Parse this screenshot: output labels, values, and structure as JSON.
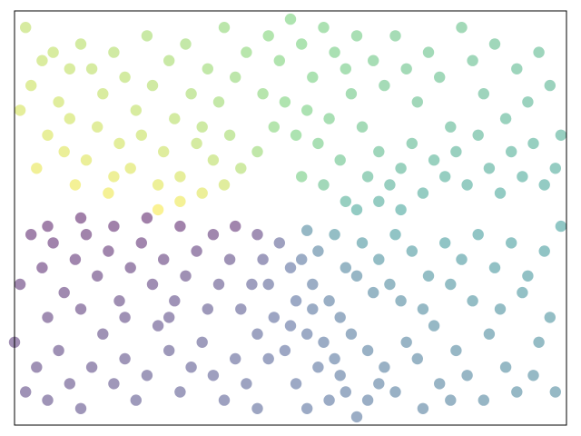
{
  "chart_data": {
    "type": "scatter",
    "title": "",
    "xlabel": "",
    "ylabel": "",
    "xticks": [],
    "yticks": [],
    "xlim": [
      0,
      1
    ],
    "ylim": [
      0,
      1
    ],
    "grid": false,
    "legend": "none",
    "marker": "circle",
    "alpha": 0.5,
    "colormap": "viridis",
    "colormap_stops": [
      "#440154",
      "#3b528b",
      "#21918c",
      "#5ec962",
      "#fde725"
    ],
    "description_of_color": "color encodes angle of each point around center (0.5, 0.5)",
    "points": [
      [
        0.02,
        0.96
      ],
      [
        0.05,
        0.88
      ],
      [
        0.03,
        0.82
      ],
      [
        0.08,
        0.78
      ],
      [
        0.06,
        0.7
      ],
      [
        0.04,
        0.62
      ],
      [
        0.1,
        0.74
      ],
      [
        0.12,
        0.92
      ],
      [
        0.14,
        0.86
      ],
      [
        0.09,
        0.66
      ],
      [
        0.11,
        0.58
      ],
      [
        0.16,
        0.8
      ],
      [
        0.18,
        0.9
      ],
      [
        0.2,
        0.84
      ],
      [
        0.15,
        0.72
      ],
      [
        0.13,
        0.64
      ],
      [
        0.17,
        0.56
      ],
      [
        0.19,
        0.68
      ],
      [
        0.22,
        0.76
      ],
      [
        0.24,
        0.94
      ],
      [
        0.21,
        0.62
      ],
      [
        0.25,
        0.82
      ],
      [
        0.23,
        0.7
      ],
      [
        0.26,
        0.58
      ],
      [
        0.28,
        0.88
      ],
      [
        0.27,
        0.66
      ],
      [
        0.29,
        0.74
      ],
      [
        0.3,
        0.6
      ],
      [
        0.32,
        0.8
      ],
      [
        0.31,
        0.92
      ],
      [
        0.33,
        0.68
      ],
      [
        0.35,
        0.86
      ],
      [
        0.34,
        0.72
      ],
      [
        0.36,
        0.64
      ],
      [
        0.37,
        0.78
      ],
      [
        0.38,
        0.96
      ],
      [
        0.39,
        0.7
      ],
      [
        0.4,
        0.84
      ],
      [
        0.41,
        0.62
      ],
      [
        0.42,
        0.9
      ],
      [
        0.07,
        0.9
      ],
      [
        0.01,
        0.76
      ],
      [
        0.1,
        0.86
      ],
      [
        0.18,
        0.6
      ],
      [
        0.26,
        0.52
      ],
      [
        0.3,
        0.54
      ],
      [
        0.34,
        0.56
      ],
      [
        0.38,
        0.58
      ],
      [
        0.44,
        0.66
      ],
      [
        0.45,
        0.8
      ],
      [
        0.46,
        0.94
      ],
      [
        0.48,
        0.88
      ],
      [
        0.5,
        0.98
      ],
      [
        0.52,
        0.92
      ],
      [
        0.54,
        0.84
      ],
      [
        0.56,
        0.96
      ],
      [
        0.58,
        0.9
      ],
      [
        0.6,
        0.86
      ],
      [
        0.62,
        0.94
      ],
      [
        0.47,
        0.72
      ],
      [
        0.49,
        0.78
      ],
      [
        0.51,
        0.7
      ],
      [
        0.53,
        0.76
      ],
      [
        0.55,
        0.68
      ],
      [
        0.57,
        0.74
      ],
      [
        0.59,
        0.64
      ],
      [
        0.61,
        0.8
      ],
      [
        0.63,
        0.72
      ],
      [
        0.65,
        0.88
      ],
      [
        0.67,
        0.82
      ],
      [
        0.69,
        0.94
      ],
      [
        0.71,
        0.86
      ],
      [
        0.73,
        0.78
      ],
      [
        0.75,
        0.9
      ],
      [
        0.77,
        0.84
      ],
      [
        0.79,
        0.72
      ],
      [
        0.81,
        0.96
      ],
      [
        0.83,
        0.88
      ],
      [
        0.85,
        0.8
      ],
      [
        0.87,
        0.92
      ],
      [
        0.89,
        0.74
      ],
      [
        0.91,
        0.86
      ],
      [
        0.93,
        0.78
      ],
      [
        0.95,
        0.9
      ],
      [
        0.97,
        0.82
      ],
      [
        0.99,
        0.7
      ],
      [
        0.64,
        0.6
      ],
      [
        0.66,
        0.66
      ],
      [
        0.68,
        0.58
      ],
      [
        0.7,
        0.62
      ],
      [
        0.72,
        0.68
      ],
      [
        0.74,
        0.56
      ],
      [
        0.76,
        0.64
      ],
      [
        0.78,
        0.6
      ],
      [
        0.8,
        0.66
      ],
      [
        0.82,
        0.58
      ],
      [
        0.84,
        0.7
      ],
      [
        0.86,
        0.62
      ],
      [
        0.88,
        0.56
      ],
      [
        0.9,
        0.66
      ],
      [
        0.92,
        0.6
      ],
      [
        0.94,
        0.68
      ],
      [
        0.96,
        0.58
      ],
      [
        0.98,
        0.62
      ],
      [
        0.6,
        0.54
      ],
      [
        0.56,
        0.58
      ],
      [
        0.52,
        0.6
      ],
      [
        0.62,
        0.52
      ],
      [
        0.66,
        0.54
      ],
      [
        0.7,
        0.52
      ],
      [
        0.53,
        0.47
      ],
      [
        0.55,
        0.42
      ],
      [
        0.58,
        0.46
      ],
      [
        0.6,
        0.38
      ],
      [
        0.63,
        0.44
      ],
      [
        0.66,
        0.4
      ],
      [
        0.69,
        0.46
      ],
      [
        0.72,
        0.42
      ],
      [
        0.75,
        0.36
      ],
      [
        0.78,
        0.44
      ],
      [
        0.81,
        0.4
      ],
      [
        0.84,
        0.46
      ],
      [
        0.87,
        0.38
      ],
      [
        0.9,
        0.44
      ],
      [
        0.93,
        0.36
      ],
      [
        0.96,
        0.42
      ],
      [
        0.99,
        0.48
      ],
      [
        0.65,
        0.32
      ],
      [
        0.7,
        0.3
      ],
      [
        0.74,
        0.28
      ],
      [
        0.79,
        0.34
      ],
      [
        0.83,
        0.3
      ],
      [
        0.88,
        0.28
      ],
      [
        0.92,
        0.32
      ],
      [
        0.97,
        0.26
      ],
      [
        0.62,
        0.36
      ],
      [
        0.68,
        0.34
      ],
      [
        0.76,
        0.24
      ],
      [
        0.86,
        0.22
      ],
      [
        0.95,
        0.2
      ],
      [
        0.52,
        0.4
      ],
      [
        0.54,
        0.34
      ],
      [
        0.57,
        0.3
      ],
      [
        0.59,
        0.26
      ],
      [
        0.61,
        0.22
      ],
      [
        0.64,
        0.18
      ],
      [
        0.67,
        0.14
      ],
      [
        0.71,
        0.2
      ],
      [
        0.73,
        0.16
      ],
      [
        0.77,
        0.1
      ],
      [
        0.8,
        0.18
      ],
      [
        0.82,
        0.12
      ],
      [
        0.85,
        0.06
      ],
      [
        0.89,
        0.14
      ],
      [
        0.91,
        0.08
      ],
      [
        0.94,
        0.12
      ],
      [
        0.98,
        0.08
      ],
      [
        0.69,
        0.08
      ],
      [
        0.74,
        0.04
      ],
      [
        0.79,
        0.06
      ],
      [
        0.48,
        0.44
      ],
      [
        0.5,
        0.38
      ],
      [
        0.46,
        0.34
      ],
      [
        0.51,
        0.3
      ],
      [
        0.47,
        0.26
      ],
      [
        0.53,
        0.22
      ],
      [
        0.49,
        0.18
      ],
      [
        0.55,
        0.14
      ],
      [
        0.51,
        0.1
      ],
      [
        0.57,
        0.06
      ],
      [
        0.53,
        0.04
      ],
      [
        0.59,
        0.12
      ],
      [
        0.56,
        0.2
      ],
      [
        0.6,
        0.08
      ],
      [
        0.62,
        0.02
      ],
      [
        0.66,
        0.1
      ],
      [
        0.64,
        0.06
      ],
      [
        0.58,
        0.16
      ],
      [
        0.54,
        0.28
      ],
      [
        0.5,
        0.24
      ],
      [
        0.45,
        0.4
      ],
      [
        0.43,
        0.34
      ],
      [
        0.41,
        0.28
      ],
      [
        0.44,
        0.22
      ],
      [
        0.4,
        0.16
      ],
      [
        0.42,
        0.1
      ],
      [
        0.38,
        0.06
      ],
      [
        0.36,
        0.12
      ],
      [
        0.34,
        0.2
      ],
      [
        0.32,
        0.14
      ],
      [
        0.3,
        0.08
      ],
      [
        0.28,
        0.18
      ],
      [
        0.26,
        0.24
      ],
      [
        0.24,
        0.12
      ],
      [
        0.22,
        0.06
      ],
      [
        0.2,
        0.16
      ],
      [
        0.18,
        0.1
      ],
      [
        0.16,
        0.22
      ],
      [
        0.14,
        0.14
      ],
      [
        0.12,
        0.04
      ],
      [
        0.1,
        0.1
      ],
      [
        0.08,
        0.18
      ],
      [
        0.06,
        0.06
      ],
      [
        0.04,
        0.14
      ],
      [
        0.02,
        0.08
      ],
      [
        0.0,
        0.2
      ],
      [
        0.39,
        0.4
      ],
      [
        0.37,
        0.34
      ],
      [
        0.35,
        0.28
      ],
      [
        0.33,
        0.42
      ],
      [
        0.31,
        0.36
      ],
      [
        0.29,
        0.3
      ],
      [
        0.27,
        0.4
      ],
      [
        0.25,
        0.34
      ],
      [
        0.23,
        0.44
      ],
      [
        0.21,
        0.38
      ],
      [
        0.19,
        0.3
      ],
      [
        0.17,
        0.42
      ],
      [
        0.15,
        0.36
      ],
      [
        0.13,
        0.46
      ],
      [
        0.11,
        0.4
      ],
      [
        0.09,
        0.32
      ],
      [
        0.07,
        0.44
      ],
      [
        0.05,
        0.38
      ],
      [
        0.03,
        0.46
      ],
      [
        0.01,
        0.34
      ],
      [
        0.44,
        0.46
      ],
      [
        0.4,
        0.48
      ],
      [
        0.36,
        0.46
      ],
      [
        0.3,
        0.48
      ],
      [
        0.24,
        0.5
      ],
      [
        0.18,
        0.48
      ],
      [
        0.12,
        0.5
      ],
      [
        0.06,
        0.48
      ],
      [
        0.2,
        0.26
      ],
      [
        0.12,
        0.28
      ],
      [
        0.06,
        0.26
      ],
      [
        0.28,
        0.26
      ],
      [
        0.46,
        0.16
      ],
      [
        0.44,
        0.04
      ]
    ]
  }
}
